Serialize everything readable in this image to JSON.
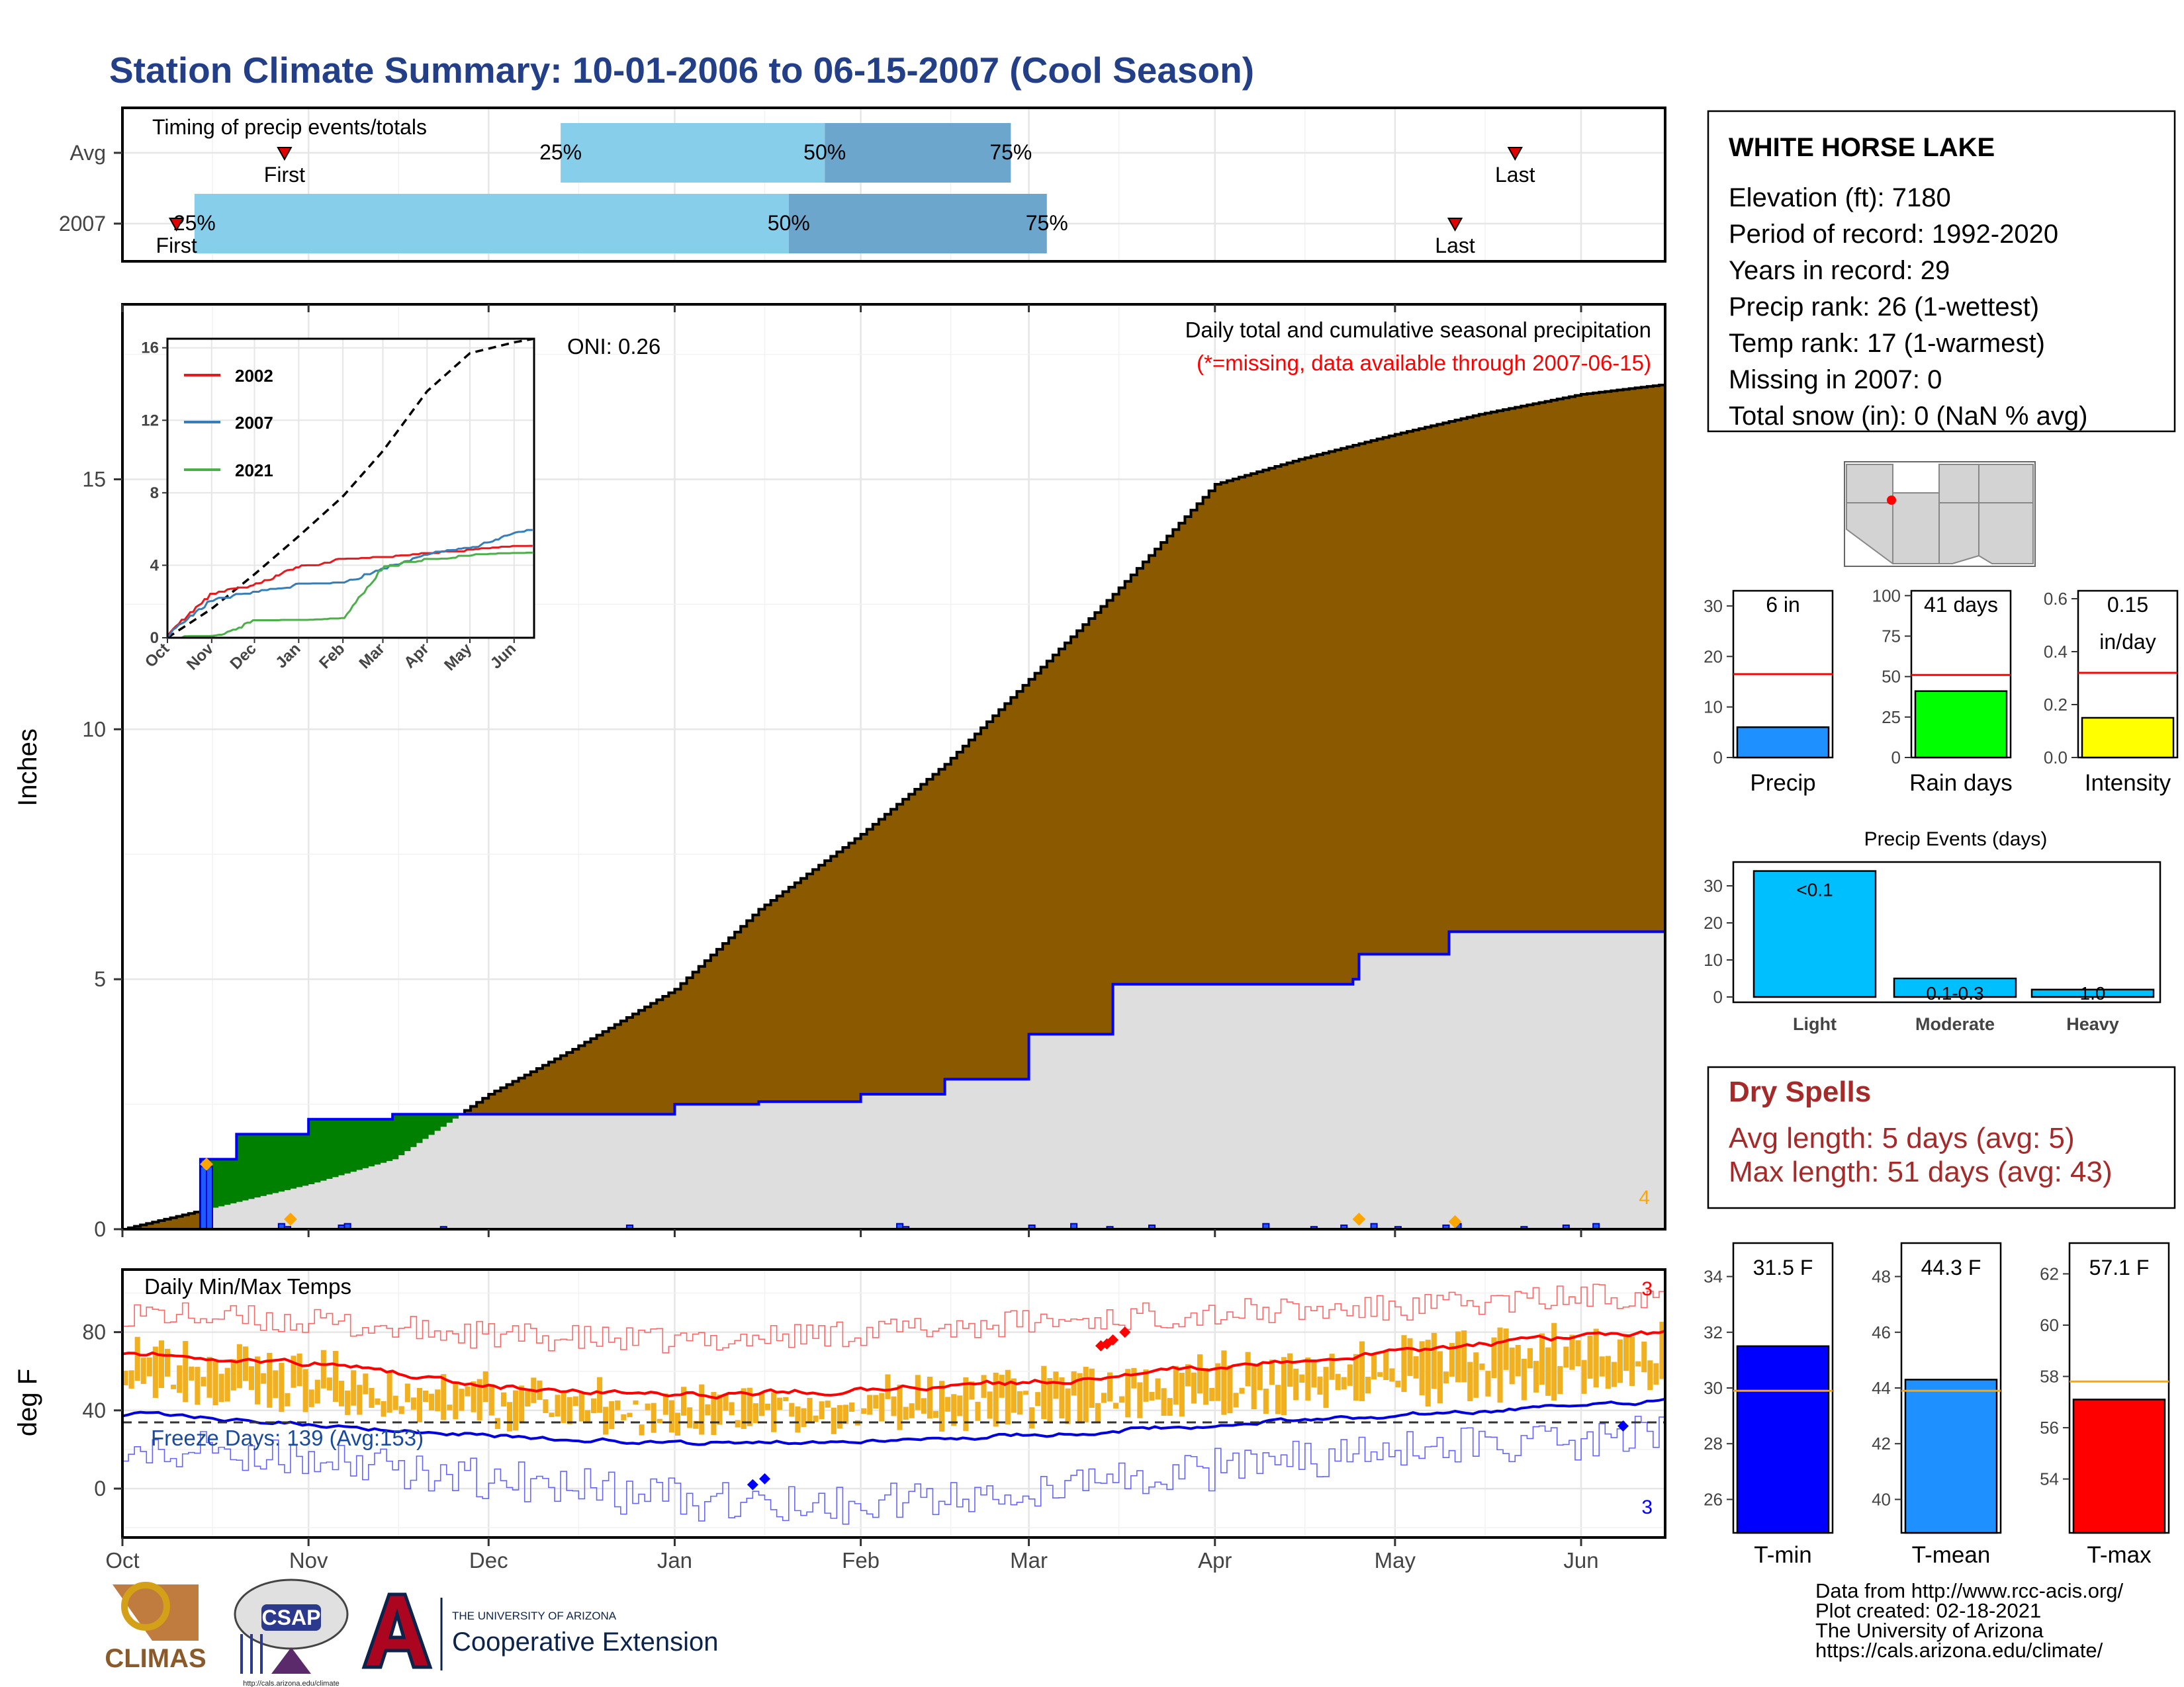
{
  "header": {
    "title": "Station Climate Summary: 10-01-2006 to 06-15-2007 (Cool Season)"
  },
  "colors": {
    "title": "#233f87",
    "cumulative_fill": "#8b5a00",
    "avg_fill": "#dedede",
    "green_fill": "#008000",
    "blue_line": "#0000ff",
    "light_blue": "#87ceeb",
    "mid_blue": "#6ca6cd",
    "temp_bar": "#f0b020",
    "dry_spell_red": "#a52a2a",
    "missing_red": "#ff0000"
  },
  "timing": {
    "label": "Timing of precip events/totals",
    "rows": [
      {
        "name": "Avg",
        "first": "First",
        "last": "Last",
        "p25": "25%",
        "p50": "50%",
        "p75": "75%",
        "first_day": 27,
        "last_day": 232,
        "p25_day": 73,
        "p50_day": 117,
        "p75_day": 148
      },
      {
        "name": "2007",
        "first": "First",
        "last": "Last",
        "p25": "25%",
        "p50": "50%",
        "p75": "75%",
        "first_day": 9,
        "last_day": 222,
        "p25_day": 12,
        "p50_day": 111,
        "p75_day": 154
      }
    ]
  },
  "precip": {
    "ylabel": "Inches",
    "note_title": "Daily total and cumulative seasonal precipitation",
    "note_missing": "(*=missing, data available through 2007-06-15)",
    "oni": "ONI: 0.26",
    "corner_count": "4",
    "month_labels": [
      "Oct",
      "Nov",
      "Dec",
      "Jan",
      "Feb",
      "Mar",
      "Apr",
      "May",
      "Jun"
    ],
    "inset": {
      "legend": [
        "2002",
        "2007",
        "2021"
      ],
      "legend_colors": [
        "#e41a1c",
        "#377eb8",
        "#4daf4a"
      ],
      "month_labels": [
        "Oct",
        "Nov",
        "Dec",
        "Jan",
        "Feb",
        "Mar",
        "Apr",
        "May",
        "Jun"
      ]
    }
  },
  "temps": {
    "label": "Daily Min/Max Temps",
    "ylabel": "deg F",
    "freeze": "Freeze Days: 139 (Avg:153)",
    "count_top": "3",
    "count_bottom": "3"
  },
  "station": {
    "name": "WHITE HORSE LAKE",
    "lines": [
      "Elevation (ft): 7180",
      "Period of record: 1992-2020",
      "Years in record: 29",
      "Precip rank: 26 (1-wettest)",
      "Temp rank: 17 (1-warmest)",
      "Missing in 2007: 0",
      "Total snow (in): 0 (NaN % avg)"
    ]
  },
  "mini_bars": [
    {
      "label": "Precip",
      "value_text": "6 in",
      "value": 6,
      "avg": 16.5,
      "ticks": [
        "0",
        "10",
        "20",
        "30"
      ],
      "max": 33,
      "color": "#1e90ff"
    },
    {
      "label": "Rain days",
      "value_text": "41 days",
      "value": 41,
      "avg": 51,
      "ticks": [
        "0",
        "25",
        "50",
        "75",
        "100"
      ],
      "max": 103,
      "color": "#00ff00"
    },
    {
      "label": "Intensity",
      "value_text": "0.15",
      "value_text2": "in/day",
      "value": 0.15,
      "avg": 0.32,
      "ticks": [
        "0.0",
        "0.2",
        "0.4",
        "0.6"
      ],
      "max": 0.63,
      "color": "#ffff00"
    }
  ],
  "events": {
    "title": "Precip Events (days)",
    "categories": [
      "Light",
      "Moderate",
      "Heavy"
    ],
    "values": [
      34,
      5,
      2
    ],
    "labels": [
      "<0.1",
      "0.1-0.3",
      "1.0"
    ],
    "ticks": [
      "0",
      "10",
      "20",
      "30"
    ]
  },
  "dry": {
    "title": "Dry Spells",
    "avg": "Avg length: 5 days (avg: 5)",
    "max": "Max length: 51 days (avg: 43)"
  },
  "temp_bars": [
    {
      "label": "T-min",
      "value_text": "31.5 F",
      "value": 31.5,
      "avg": 29.9,
      "min": 24.8,
      "max": 35.2,
      "ticks": [
        "26",
        "28",
        "30",
        "32",
        "34"
      ],
      "color": "#0000ff"
    },
    {
      "label": "T-mean",
      "value_text": "44.3 F",
      "value": 44.3,
      "avg": 43.9,
      "min": 38.8,
      "max": 49.2,
      "ticks": [
        "40",
        "42",
        "44",
        "46",
        "48"
      ],
      "color": "#1e90ff"
    },
    {
      "label": "T-max",
      "value_text": "57.1 F",
      "value": 57.1,
      "avg": 57.8,
      "min": 51.9,
      "max": 63.2,
      "ticks": [
        "54",
        "56",
        "58",
        "60",
        "62"
      ],
      "color": "#ff0000"
    }
  ],
  "footer": {
    "logos": [
      "CLIMAS",
      "CSAP"
    ],
    "ua_top": "THE UNIVERSITY OF ARIZONA",
    "ua_bottom": "Cooperative Extension",
    "csap_url": "http://cals.arizona.edu/climate",
    "credits": [
      "Data from http://www.rcc-acis.org/",
      "Plot created: 02-18-2021",
      "The University of Arizona",
      "https://cals.arizona.edu/climate/"
    ]
  },
  "chart_data": [
    {
      "type": "bar",
      "title": "Timing of precip events/totals",
      "categories": [
        "Avg",
        "2007"
      ],
      "series": [
        {
          "name": "First",
          "values": [
            "2006-10-28",
            "2006-10-10"
          ]
        },
        {
          "name": "25%",
          "values": [
            "2006-12-13",
            "2006-10-13"
          ]
        },
        {
          "name": "50%",
          "values": [
            "2007-01-26",
            "2007-01-20"
          ]
        },
        {
          "name": "75%",
          "values": [
            "2007-02-26",
            "2007-03-04"
          ]
        },
        {
          "name": "Last",
          "values": [
            "2007-05-21",
            "2007-05-11"
          ]
        }
      ]
    },
    {
      "type": "area",
      "title": "Daily total and cumulative seasonal precipitation",
      "ylabel": "Inches",
      "ylim": [
        0,
        18.5
      ],
      "xlim": [
        "2006-10-01",
        "2007-06-15"
      ],
      "series": [
        {
          "values": [
            [
              "2006-10-01",
              0
            ],
            [
              "2006-10-15",
              0.4
            ],
            [
              "2006-11-01",
              0.9
            ],
            [
              "2006-11-15",
              1.4
            ],
            [
              "2006-12-01",
              2.7
            ],
            [
              "2006-12-15",
              3.6
            ],
            [
              "2007-01-01",
              4.8
            ],
            [
              "2007-01-15",
              6.4
            ],
            [
              "2007-02-01",
              7.9
            ],
            [
              "2007-02-15",
              9.3
            ],
            [
              "2007-03-01",
              11.0
            ],
            [
              "2007-03-15",
              12.7
            ],
            [
              "2007-04-01",
              14.9
            ],
            [
              "2007-04-15",
              15.4
            ],
            [
              "2007-05-01",
              15.9
            ],
            [
              "2007-05-15",
              16.3
            ],
            [
              "2007-06-01",
              16.7
            ],
            [
              "2007-06-15",
              16.9
            ]
          ]
        },
        {
          "name": "2007",
          "values": [
            [
              "2006-10-01",
              0
            ],
            [
              "2006-10-13",
              0
            ],
            [
              "2006-10-14",
              1.4
            ],
            [
              "2006-10-20",
              1.9
            ],
            [
              "2006-11-01",
              2.2
            ],
            [
              "2006-11-15",
              2.3
            ],
            [
              "2006-12-15",
              2.3
            ],
            [
              "2007-01-01",
              2.5
            ],
            [
              "2007-01-15",
              2.55
            ],
            [
              "2007-02-01",
              2.7
            ],
            [
              "2007-02-15",
              3.0
            ],
            [
              "2007-03-01",
              3.9
            ],
            [
              "2007-03-15",
              4.9
            ],
            [
              "2007-04-01",
              4.9
            ],
            [
              "2007-04-24",
              5.0
            ],
            [
              "2007-04-25",
              5.5
            ],
            [
              "2007-05-10",
              5.95
            ],
            [
              "2007-06-15",
              5.95
            ]
          ]
        }
      ]
    },
    {
      "type": "line",
      "title": "",
      "ylim": [
        0,
        16.5
      ],
      "x": [
        "2006-10-01",
        "2006-11-01",
        "2006-12-01",
        "2007-01-01",
        "2007-02-01",
        "2007-03-01",
        "2007-04-01",
        "2007-05-01",
        "2007-06-01",
        "2007-06-15"
      ],
      "series": [
        {
          "values": [
            0,
            1.6,
            3.5,
            5.6,
            7.8,
            10.3,
            13.6,
            15.7,
            16.3,
            16.5
          ]
        },
        {
          "name": "2002",
          "values": [
            0.2,
            2.4,
            2.9,
            3.9,
            4.3,
            4.4,
            4.6,
            4.8,
            5.0,
            5.0
          ]
        },
        {
          "name": "2007",
          "values": [
            0.1,
            2.1,
            2.5,
            2.9,
            3.0,
            3.8,
            4.6,
            4.9,
            5.8,
            5.9
          ]
        },
        {
          "name": "2021",
          "values": [
            0.0,
            0.0,
            0.9,
            0.9,
            1.0,
            3.9,
            4.3,
            4.5,
            4.6,
            4.6
          ]
        }
      ]
    },
    {
      "type": "line",
      "title": "Daily Min/Max Temps",
      "ylabel": "deg F",
      "ylim": [
        -25,
        112
      ],
      "x": [
        "2006-10-01",
        "2006-11-01",
        "2006-12-01",
        "2007-01-01",
        "2007-02-01",
        "2007-03-01",
        "2007-04-01",
        "2007-05-01",
        "2007-06-01",
        "2007-06-15"
      ],
      "series": [
        {
          "values": [
            70,
            64,
            52,
            48,
            51,
            55,
            63,
            71,
            78,
            80
          ]
        },
        {
          "values": [
            38,
            33,
            27,
            23,
            25,
            28,
            33,
            38,
            43,
            45
          ]
        },
        {
          "values": [
            90,
            85,
            78,
            75,
            80,
            85,
            90,
            92,
            98,
            100
          ]
        },
        {
          "values": [
            25,
            15,
            5,
            -5,
            -10,
            0,
            10,
            18,
            25,
            30
          ]
        }
      ]
    },
    {
      "type": "bar",
      "categories": [
        "Precip",
        "Rain days",
        "Intensity"
      ],
      "series": [
        {
          "values": [
            6,
            41,
            0.15
          ]
        },
        {
          "values": [
            16.5,
            51,
            0.32
          ]
        }
      ]
    },
    {
      "type": "bar",
      "title": "Precip Events (days)",
      "categories": [
        "Light",
        "Moderate",
        "Heavy"
      ],
      "values": [
        34,
        5,
        2
      ]
    },
    {
      "type": "bar",
      "categories": [
        "T-min",
        "T-mean",
        "T-max"
      ],
      "series": [
        {
          "values": [
            31.5,
            44.3,
            57.1
          ]
        },
        {
          "values": [
            29.9,
            43.9,
            57.8
          ]
        }
      ]
    }
  ]
}
